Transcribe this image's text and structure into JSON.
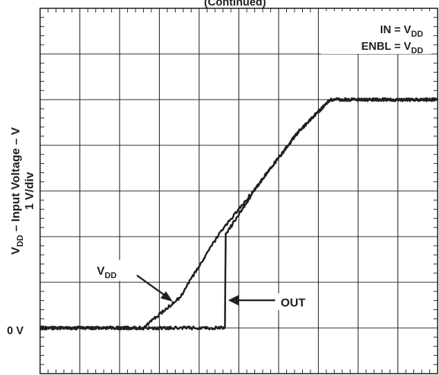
{
  "chart_data": {
    "type": "line",
    "title": "(Continued)",
    "ylabel_line1": "V",
    "ylabel_sub": "DD",
    "ylabel_rest": " – Input Voltage – V",
    "ylabel_line2": "1 V/div",
    "zero_label": "0 V",
    "grid": true,
    "x_divisions": 10,
    "y_divisions": 8,
    "volts_per_div": 1,
    "conditions": [
      {
        "main": "IN = V",
        "sub": "DD"
      },
      {
        "main": "ENBL = V",
        "sub": "DD"
      }
    ],
    "annotations": [
      {
        "main": "V",
        "sub": "DD"
      },
      {
        "main": "OUT",
        "sub": ""
      }
    ],
    "series": [
      {
        "name": "VDD",
        "x_div": [
          0,
          2.6,
          2.8,
          3.5,
          4.5,
          5.5,
          6.5,
          7.3,
          10
        ],
        "y_volts": [
          0,
          0,
          0.15,
          0.65,
          2.05,
          3.15,
          4.3,
          5.0,
          5.0
        ]
      },
      {
        "name": "OUT",
        "x_div": [
          0,
          4.65,
          4.67,
          5.5,
          6.5,
          7.3,
          10
        ],
        "y_volts": [
          0,
          0,
          2.05,
          3.15,
          4.3,
          5.0,
          5.0
        ]
      }
    ]
  }
}
